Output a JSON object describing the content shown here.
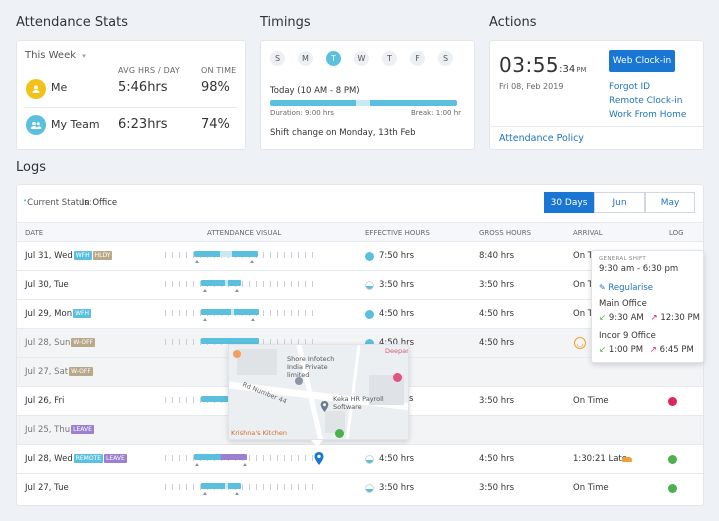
{
  "attendance": {
    "title": "Attendance Stats",
    "period": "This Week",
    "col_avg": "AVG HRS / DAY",
    "col_ontime": "ON TIME",
    "rows": [
      {
        "label": "Me",
        "avg": "5:46hrs",
        "ontime": "98%"
      },
      {
        "label": "My Team",
        "avg": "6:23hrs",
        "ontime": "74%"
      }
    ]
  },
  "timings": {
    "title": "Timings",
    "days": [
      "S",
      "M",
      "T",
      "W",
      "T",
      "F",
      "S"
    ],
    "active_day_index": 2,
    "today": "Today (10 AM - 8 PM)",
    "duration": "Duration: 9:00 hrs",
    "break": "Break: 1:00 hr",
    "shift_change": "Shift change on Monday, 13th Feb"
  },
  "actions": {
    "title": "Actions",
    "time_main": "03:55",
    "time_sec": ":34",
    "time_ampm": "PM",
    "date": "Fri 08, Feb 2019",
    "clock_in_button": "Web Clock-in",
    "links": [
      "Forgot ID",
      "Remote Clock-in",
      "Work From Home"
    ],
    "policy_link": "Attendance Policy"
  },
  "logs": {
    "title": "Logs",
    "status_prefix": "Current Status:",
    "status_value": "In Office",
    "tabs": [
      "30 Days",
      "Jun",
      "May"
    ],
    "active_tab": 0,
    "headers": [
      "DATE",
      "ATTENDANCE VISUAL",
      "EFFECTIVE HOURS",
      "GROSS HOURS",
      "ARRIVAL",
      "LOG"
    ],
    "rows": [
      {
        "date": "Jul 31, Wed",
        "badges": [
          "WFH",
          "HLDY"
        ],
        "eff": "7:50 hrs",
        "gross": "8:40 hrs",
        "arrival": "On Ti"
      },
      {
        "date": "Jul 30, Tue",
        "badges": [],
        "eff": "3:50 hrs",
        "gross": "3:50 hrs",
        "arrival": "On Ti"
      },
      {
        "date": "Jul 29, Mon",
        "badges": [
          "WFH"
        ],
        "eff": "4:50 hrs",
        "gross": "4:50 hrs",
        "arrival": "On Ti"
      },
      {
        "date": "Jul 28, Sun",
        "badges": [
          "W-OFF"
        ],
        "eff": "4:50 hrs",
        "gross": "4:50 hrs",
        "arrival": ""
      },
      {
        "date": "Jul 27, Sat",
        "badges": [
          "W-OFF"
        ],
        "eff": "",
        "gross": "",
        "arrival": ""
      },
      {
        "date": "Jul 26, Fri",
        "badges": [],
        "eff": "",
        "gross": "3:50 hrs",
        "arrival": "On Time"
      },
      {
        "date": "Jul 25, Thu",
        "badges": [
          "LEAVE"
        ],
        "eff": "",
        "gross": "",
        "arrival": ""
      },
      {
        "date": "Jul 28, Wed",
        "badges": [
          "REMOTE",
          "LEAVE"
        ],
        "eff": "4:50 hrs",
        "gross": "4:50 hrs",
        "arrival": "1:30:21 Late"
      },
      {
        "date": "Jul 27, Tue",
        "badges": [],
        "eff": "3:50 hrs",
        "gross": "3:50 hrs",
        "arrival": "On Time"
      }
    ],
    "eff_partial": "s"
  },
  "shift_popover": {
    "label": "GENERAL SHIFT",
    "time": "9:30 am - 6:30 pm",
    "regularise": "Regularise",
    "locations": [
      {
        "name": "Main Office",
        "in": "9:30 AM",
        "out": "12:30 PM"
      },
      {
        "name": "Incor 9 Office",
        "in": "1:00 PM",
        "out": "6:45 PM"
      }
    ]
  },
  "map_popover": {
    "labels": [
      "Shore Infotech India Private limited",
      "Rd Number 44",
      "Keka HR Payroll Software",
      "Deepan",
      "Krishna's Kitchen"
    ]
  }
}
